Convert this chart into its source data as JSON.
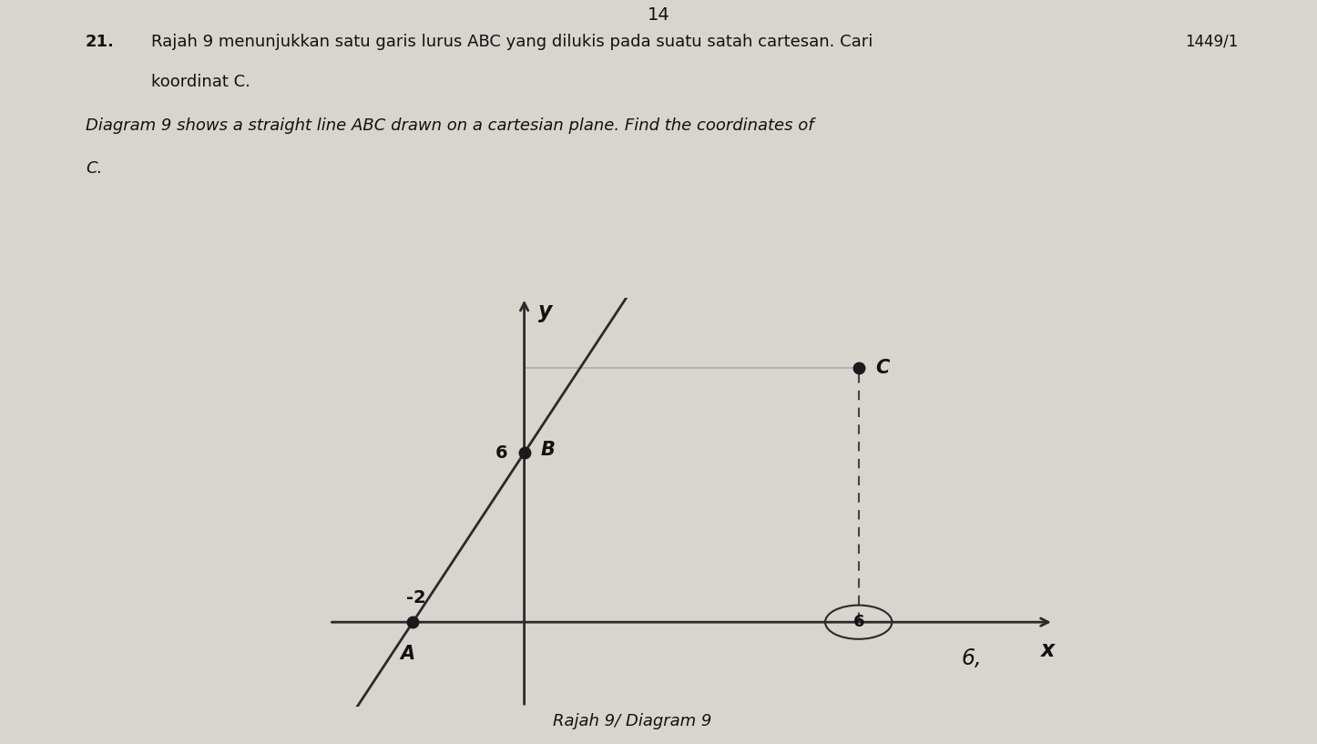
{
  "title_number": "14",
  "question_number": "21.",
  "question_text_line1": "Rajah 9 menunjukkan satu garis lurus ABC yang dilukis pada suatu satah cartes​an. Cari",
  "question_text_line2": "koordinat C.",
  "question_text_eng_line1": "Diagram 9 shows a straight line ABC drawn on a cartesian plane. Find the coordinates of",
  "question_text_eng_line2": "C.",
  "caption": "Rajah 9/ Diagram 9",
  "ref_code": "1449/1",
  "handwritten": "6,",
  "point_A": [
    -2,
    0
  ],
  "point_B": [
    0,
    6
  ],
  "point_C": [
    6,
    9
  ],
  "circled_x": 6,
  "axis_color": "#2a2a2a",
  "line_color": "#2a2a2a",
  "dashed_color": "#444444",
  "thin_line_color": "#aaaaaa",
  "point_color": "#1a1a1a",
  "bg_color": "#c8c5bf",
  "paper_color": "#d8d5cf",
  "text_color": "#111111",
  "xlim": [
    -3.5,
    9.5
  ],
  "ylim": [
    -3.0,
    11.5
  ]
}
